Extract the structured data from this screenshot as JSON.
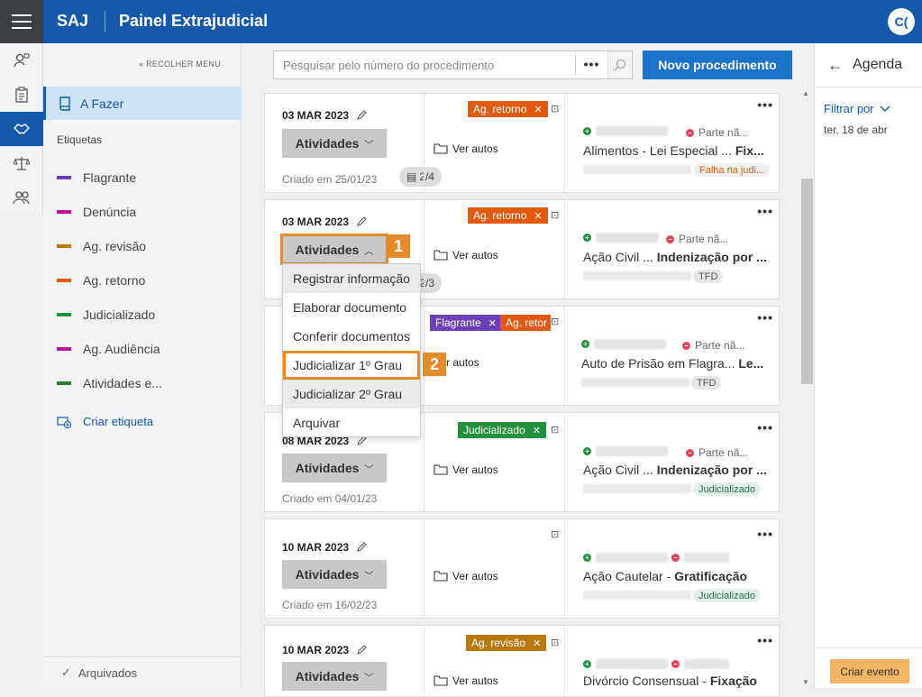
{
  "topbar": {
    "brand": "SAJ",
    "title": "Painel Extrajudicial",
    "user_initials": "C("
  },
  "sidebar": {
    "collapse_label": "« RECOLHER MENU",
    "active_item": "A Fazer",
    "labels_title": "Etiquetas",
    "tags": [
      {
        "label": "Flagrante",
        "color": "#6b3fb8"
      },
      {
        "label": "Denúncia",
        "color": "#b5179e"
      },
      {
        "label": "Ag. revisão",
        "color": "#b8770f"
      },
      {
        "label": "Ag. retorno",
        "color": "#e05a12"
      },
      {
        "label": "Judicializado",
        "color": "#22913d"
      },
      {
        "label": "Ag. Audiência",
        "color": "#b5179e"
      },
      {
        "label": "Atividades e...",
        "color": "#2e7d32"
      }
    ],
    "create_label": "Criar etiqueta",
    "archived_label": "Arquivados"
  },
  "search": {
    "placeholder": "Pesquisar pelo número do procedimento",
    "more": "•••"
  },
  "new_button": "Novo procedimento",
  "cards": [
    {
      "date": "03 MAR 2023",
      "activities": "Atividades",
      "created": "Criado em 25/01/23",
      "count": "2/4",
      "tags": [
        {
          "label": "Ag. retorno",
          "color": "#e05a12"
        }
      ],
      "ver_autos": "Ver autos",
      "party_right": "Parte nã...",
      "proc_title": "Alimentos - Lei Especial ...",
      "proc_bold": "Fix...",
      "badge": "Falha na judi..."
    },
    {
      "date": "03 MAR 2023",
      "activities": "Atividades",
      "count": "2/3",
      "tags": [
        {
          "label": "Ag. retorno",
          "color": "#e05a12"
        }
      ],
      "ver_autos": "Ver autos",
      "party_right": "Parte nã...",
      "proc_title": "Ação Civil ...",
      "proc_bold": "Indenização por ...",
      "badge": "TFD"
    },
    {
      "tags": [
        {
          "label": "Flagrante",
          "color": "#6b3fb8"
        },
        {
          "label": "Ag. retor",
          "color": "#e05a12"
        }
      ],
      "ver_autos": "Ver autos",
      "party_right": "Parte nã...",
      "proc_title": "Auto de Prisão em Flagra...",
      "proc_bold": "Le...",
      "badge": "TFD"
    },
    {
      "date": "08 MAR 2023",
      "activities": "Atividades",
      "created": "Criado em 04/01/23",
      "tags": [
        {
          "label": "Judicializado",
          "color": "#22913d"
        }
      ],
      "ver_autos": "Ver autos",
      "party_right": "Parte nã...",
      "proc_title": "Ação Civil ...",
      "proc_bold": "Indenização por ...",
      "badge": "Judicializado"
    },
    {
      "date": "10 MAR 2023",
      "activities": "Atividades",
      "created": "Criado em 16/02/23",
      "ver_autos": "Ver autos",
      "proc_title": "Ação Cautelar -",
      "proc_bold": "Gratificação",
      "badge": "Judicializado"
    },
    {
      "date": "10 MAR 2023",
      "activities": "Atividades",
      "tags": [
        {
          "label": "Ag. revisão",
          "color": "#b8770f"
        }
      ],
      "ver_autos": "Ver autos",
      "proc_title": "Divórcio Consensual -",
      "proc_bold": "Fixação"
    }
  ],
  "dropdown": {
    "items": [
      "Registrar informação",
      "Elaborar documento",
      "Conferir documentos",
      "Judicializar 1º Grau",
      "Judicializar 2º Grau",
      "Arquivar"
    ]
  },
  "callouts": [
    "1",
    "2"
  ],
  "agenda": {
    "title": "Agenda",
    "filter": "Filtrar por",
    "date": "ter, 18 de abr",
    "create_event": "Criar evento"
  }
}
